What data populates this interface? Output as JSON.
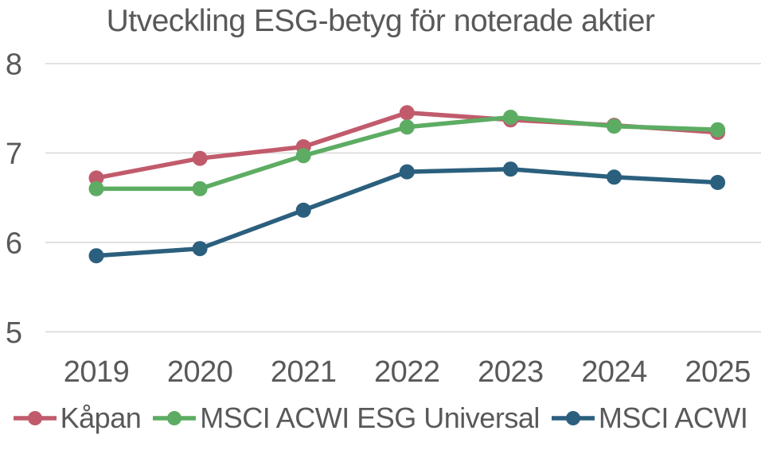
{
  "title": "Utveckling ESG-betyg för noterade aktier",
  "chart_data": {
    "type": "line",
    "title": "Utveckling ESG-betyg för noterade aktier",
    "categories": [
      "2019",
      "2020",
      "2021",
      "2022",
      "2023",
      "2024",
      "2025"
    ],
    "series": [
      {
        "name": "Kåpan",
        "color": "#c15b6c",
        "values": [
          6.72,
          6.94,
          7.07,
          7.45,
          7.37,
          7.31,
          7.23
        ]
      },
      {
        "name": "MSCI ACWI ESG Universal",
        "color": "#5dac63",
        "values": [
          6.6,
          6.6,
          6.97,
          7.29,
          7.4,
          7.3,
          7.26
        ]
      },
      {
        "name": "MSCI ACWI",
        "color": "#2b5f7e",
        "values": [
          5.85,
          5.93,
          6.36,
          6.79,
          6.82,
          6.73,
          6.67
        ]
      }
    ],
    "xlabel": "",
    "ylabel": "",
    "ylim": [
      5,
      8
    ],
    "yticks": [
      "8",
      "7",
      "6",
      "5"
    ],
    "ytick_values": [
      8,
      7,
      6,
      5
    ],
    "grid": true,
    "legend_position": "bottom",
    "colors": {
      "text": "#595959",
      "gridline": "#d9d9d9",
      "background": "#ffffff"
    }
  }
}
